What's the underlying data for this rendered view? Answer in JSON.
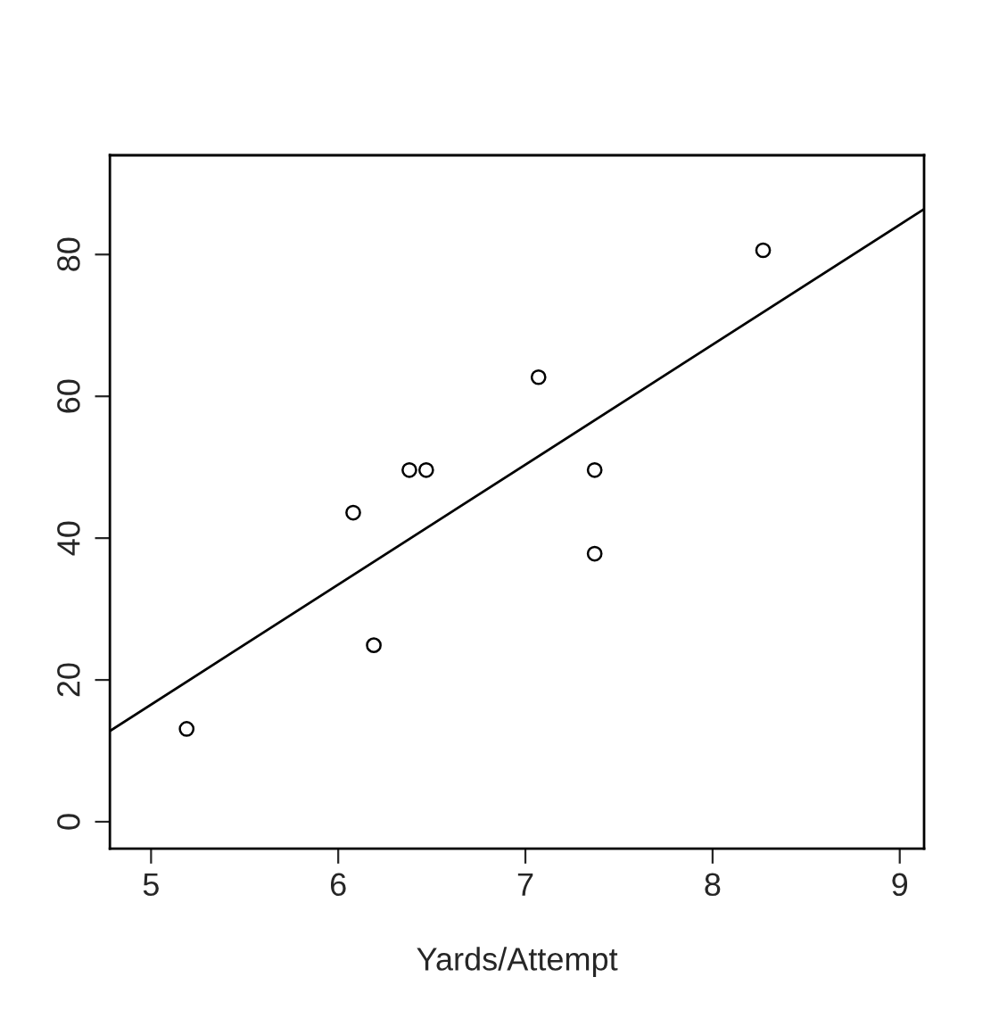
{
  "chart_data": {
    "type": "scatter",
    "xlabel": "Yards/Attempt",
    "series": [
      {
        "color": "#000000",
        "marker": "circle",
        "x": [
          5.19,
          6.08,
          6.19,
          6.38,
          6.47,
          7.07,
          7.37,
          7.37,
          8.27
        ],
        "values": [
          13.1,
          43.6,
          24.9,
          49.6,
          49.6,
          62.7,
          49.6,
          37.8,
          80.6
        ]
      },
      {
        "type": "line",
        "color": "#000000",
        "x": [
          4.78,
          9.13
        ],
        "values": [
          12.8,
          86.4
        ]
      }
    ],
    "xlim": [
      4.78,
      9.13
    ],
    "ylim": [
      -3.8,
      94
    ],
    "xticks": [
      5,
      6,
      7,
      8,
      9
    ],
    "yticks": [
      0,
      20,
      40,
      60,
      80
    ],
    "grid": false,
    "legend": false
  }
}
